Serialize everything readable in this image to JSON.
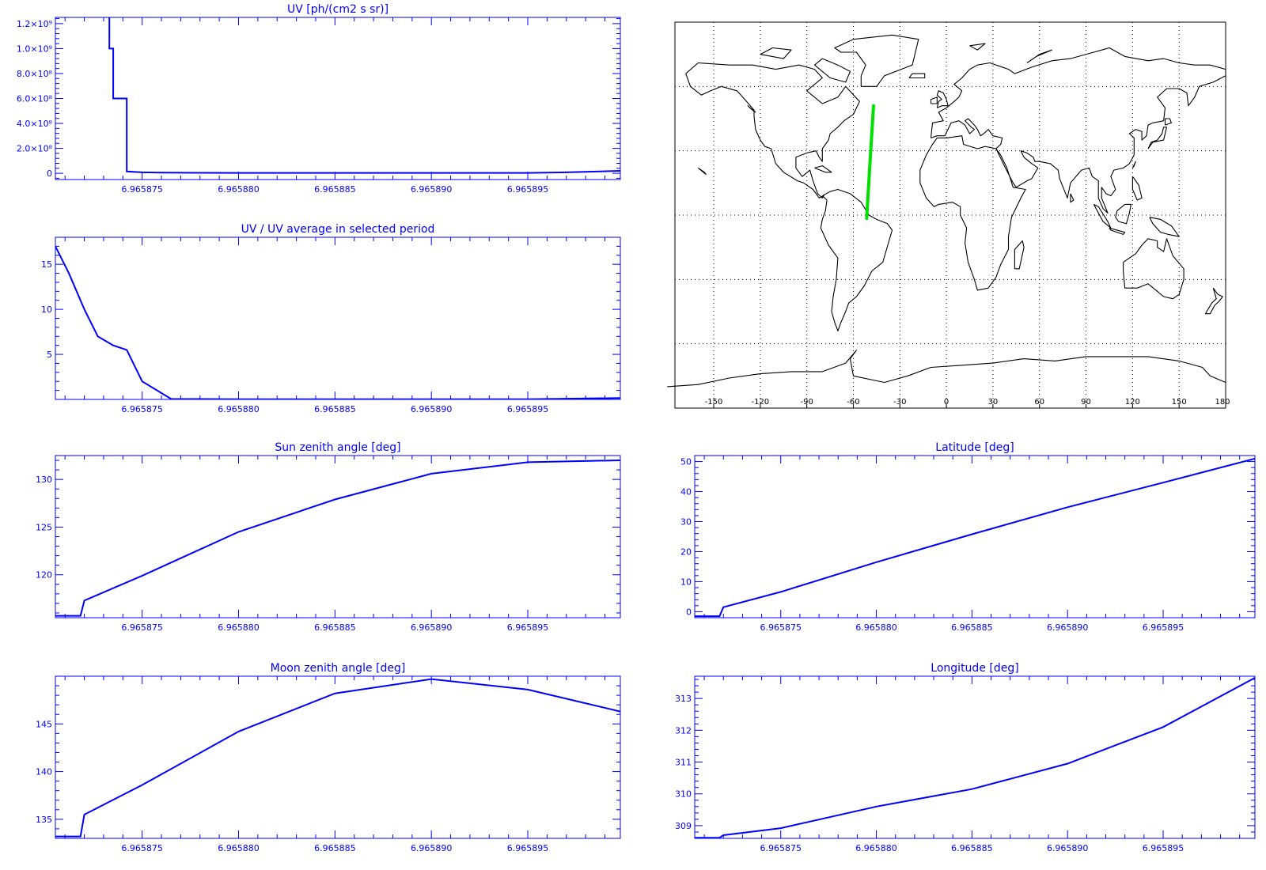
{
  "chart_data": [
    {
      "id": "uv",
      "type": "line",
      "title": "UV [ph/(cm2 s sr)]",
      "xlim": [
        6.9658705,
        6.9658998
      ],
      "ylim": [
        -50000000,
        1250000000
      ],
      "x_ticks": [
        6.965875,
        6.96588,
        6.965885,
        6.96589,
        6.965895
      ],
      "x_tick_labels": [
        "6.965875",
        "6.965880",
        "6.965885",
        "6.965890",
        "6.965895"
      ],
      "y_ticks": [
        0,
        200000000,
        400000000,
        600000000,
        800000000,
        1000000000,
        1200000000
      ],
      "y_tick_labels": [
        "0",
        "2.0×10⁸",
        "4.0×10⁸",
        "6.0×10⁸",
        "8.0×10⁸",
        "1.0×10⁹",
        "1.2×10⁹"
      ],
      "step": true,
      "x": [
        6.9658733,
        6.9658733,
        6.9658735,
        6.9658735,
        6.9658742,
        6.9658742,
        6.965875,
        6.965876,
        6.96588,
        6.965885,
        6.96589,
        6.965895,
        6.965897,
        6.9658998
      ],
      "y": [
        1250000000,
        1000000000,
        1000000000,
        600000000,
        600000000,
        15000000,
        8000000,
        5000000,
        3000000,
        3000000,
        3000000,
        3000000,
        8000000,
        20000000
      ]
    },
    {
      "id": "uv-ratio",
      "type": "line",
      "title": "UV / UV average in selected period",
      "xlim": [
        6.9658705,
        6.9658998
      ],
      "ylim": [
        0,
        18
      ],
      "x_ticks": [
        6.965875,
        6.96588,
        6.965885,
        6.96589,
        6.965895
      ],
      "x_tick_labels": [
        "6.965875",
        "6.965880",
        "6.965885",
        "6.965890",
        "6.965895"
      ],
      "y_ticks": [
        5,
        10,
        15
      ],
      "y_tick_labels": [
        "5",
        "10",
        "15"
      ],
      "x": [
        6.9658705,
        6.9658712,
        6.965872,
        6.9658727,
        6.9658735,
        6.9658742,
        6.965875,
        6.9658765,
        6.96588,
        6.965885,
        6.96589,
        6.965895,
        6.9658998
      ],
      "y": [
        17,
        14,
        10,
        7,
        6,
        5.5,
        2,
        0.05,
        0.03,
        0.03,
        0.03,
        0.03,
        0.15
      ]
    },
    {
      "id": "sun-zenith",
      "type": "line",
      "title": "Sun zenith angle [deg]",
      "xlim": [
        6.9658705,
        6.9658998
      ],
      "ylim": [
        115.5,
        132.5
      ],
      "x_ticks": [
        6.965875,
        6.96588,
        6.965885,
        6.96589,
        6.965895
      ],
      "x_tick_labels": [
        "6.965875",
        "6.965880",
        "6.965885",
        "6.965890",
        "6.965895"
      ],
      "y_ticks": [
        120,
        125,
        130
      ],
      "y_tick_labels": [
        "120",
        "125",
        "130"
      ],
      "x": [
        6.9658705,
        6.9658718,
        6.965872,
        6.965875,
        6.96588,
        6.965885,
        6.96589,
        6.965895,
        6.9658998
      ],
      "y": [
        115.7,
        115.7,
        117.3,
        119.9,
        124.5,
        127.9,
        130.6,
        131.8,
        132.0
      ]
    },
    {
      "id": "moon-zenith",
      "type": "line",
      "title": "Moon zenith angle [deg]",
      "xlim": [
        6.9658705,
        6.9658998
      ],
      "ylim": [
        133.0,
        150.0
      ],
      "x_ticks": [
        6.965875,
        6.96588,
        6.965885,
        6.96589,
        6.965895
      ],
      "x_tick_labels": [
        "6.965875",
        "6.965880",
        "6.965885",
        "6.965890",
        "6.965895"
      ],
      "y_ticks": [
        135,
        140,
        145
      ],
      "y_tick_labels": [
        "135",
        "140",
        "145"
      ],
      "x": [
        6.9658705,
        6.9658718,
        6.965872,
        6.965875,
        6.96588,
        6.965885,
        6.96589,
        6.965895,
        6.9658998
      ],
      "y": [
        133.2,
        133.2,
        135.5,
        138.6,
        144.2,
        148.2,
        149.7,
        148.6,
        146.3
      ]
    },
    {
      "id": "latitude",
      "type": "line",
      "title": "Latitude [deg]",
      "xlim": [
        6.9658705,
        6.9658998
      ],
      "ylim": [
        -2,
        52
      ],
      "x_ticks": [
        6.965875,
        6.96588,
        6.965885,
        6.96589,
        6.965895
      ],
      "x_tick_labels": [
        "6.965875",
        "6.965880",
        "6.965885",
        "6.965890",
        "6.965895"
      ],
      "y_ticks": [
        0,
        10,
        20,
        30,
        40,
        50
      ],
      "y_tick_labels": [
        "0",
        "10",
        "20",
        "30",
        "40",
        "50"
      ],
      "x": [
        6.9658705,
        6.9658718,
        6.965872,
        6.965875,
        6.96588,
        6.965885,
        6.96589,
        6.965895,
        6.9658998
      ],
      "y": [
        -1.5,
        -1.5,
        1.5,
        6.6,
        16.5,
        25.8,
        34.8,
        43.0,
        51.0
      ]
    },
    {
      "id": "longitude",
      "type": "line",
      "title": "Longitude [deg]",
      "xlim": [
        6.9658705,
        6.9658998
      ],
      "ylim": [
        308.6,
        313.7
      ],
      "x_ticks": [
        6.965875,
        6.96588,
        6.965885,
        6.96589,
        6.965895
      ],
      "x_tick_labels": [
        "6.965875",
        "6.965880",
        "6.965885",
        "6.965890",
        "6.965895"
      ],
      "y_ticks": [
        309,
        310,
        311,
        312,
        313
      ],
      "y_tick_labels": [
        "309",
        "310",
        "311",
        "312",
        "313"
      ],
      "x": [
        6.9658705,
        6.9658718,
        6.965872,
        6.965875,
        6.96588,
        6.965885,
        6.96589,
        6.965895,
        6.9658998
      ],
      "y": [
        308.62,
        308.62,
        308.7,
        308.92,
        309.6,
        310.15,
        310.95,
        312.1,
        313.65
      ]
    }
  ],
  "map": {
    "lon_range": [
      -175,
      180
    ],
    "lat_range": [
      -90,
      90
    ],
    "lon_ticks": [
      -150,
      -120,
      -90,
      -60,
      -30,
      0,
      30,
      60,
      90,
      120,
      150,
      180
    ],
    "lon_tick_labels": [
      "-150",
      "-120",
      "-90",
      "-60",
      "-30",
      "0",
      "30",
      "60",
      "90",
      "120",
      "150",
      "180"
    ],
    "lat_grid": [
      -60,
      -30,
      0,
      30,
      60
    ],
    "track_color": "#00e000",
    "track": {
      "lon": [
        -51.4,
        -49.2,
        -47.0
      ],
      "lat": [
        -1.5,
        25.0,
        51.0
      ]
    }
  },
  "colors": {
    "axis": "#0000ff",
    "series": "#0000ff",
    "map": "#000000"
  }
}
